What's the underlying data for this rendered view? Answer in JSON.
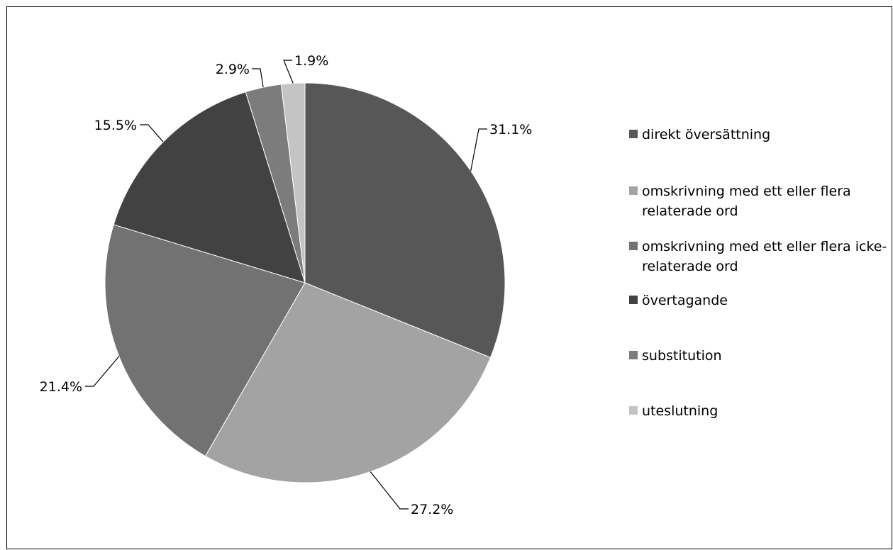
{
  "chart_data": {
    "type": "pie",
    "title": "",
    "slices": [
      {
        "label": "direkt översättning",
        "value": 31.1,
        "display": "31.1%",
        "color": "#575757"
      },
      {
        "label": "omskrivning med ett eller flera relaterade ord",
        "value": 27.2,
        "display": "27.2%",
        "color": "#a3a3a3"
      },
      {
        "label": "omskrivning med ett eller flera icke-relaterade ord",
        "value": 21.4,
        "display": "21.4%",
        "color": "#727272"
      },
      {
        "label": "övertagande",
        "value": 15.5,
        "display": "15.5%",
        "color": "#424242"
      },
      {
        "label": "substitution",
        "value": 2.9,
        "display": "2.9%",
        "color": "#7c7c7c"
      },
      {
        "label": "uteslutning",
        "value": 1.9,
        "display": "1.9%",
        "color": "#c4c4c4"
      }
    ],
    "legend_position": "right"
  }
}
